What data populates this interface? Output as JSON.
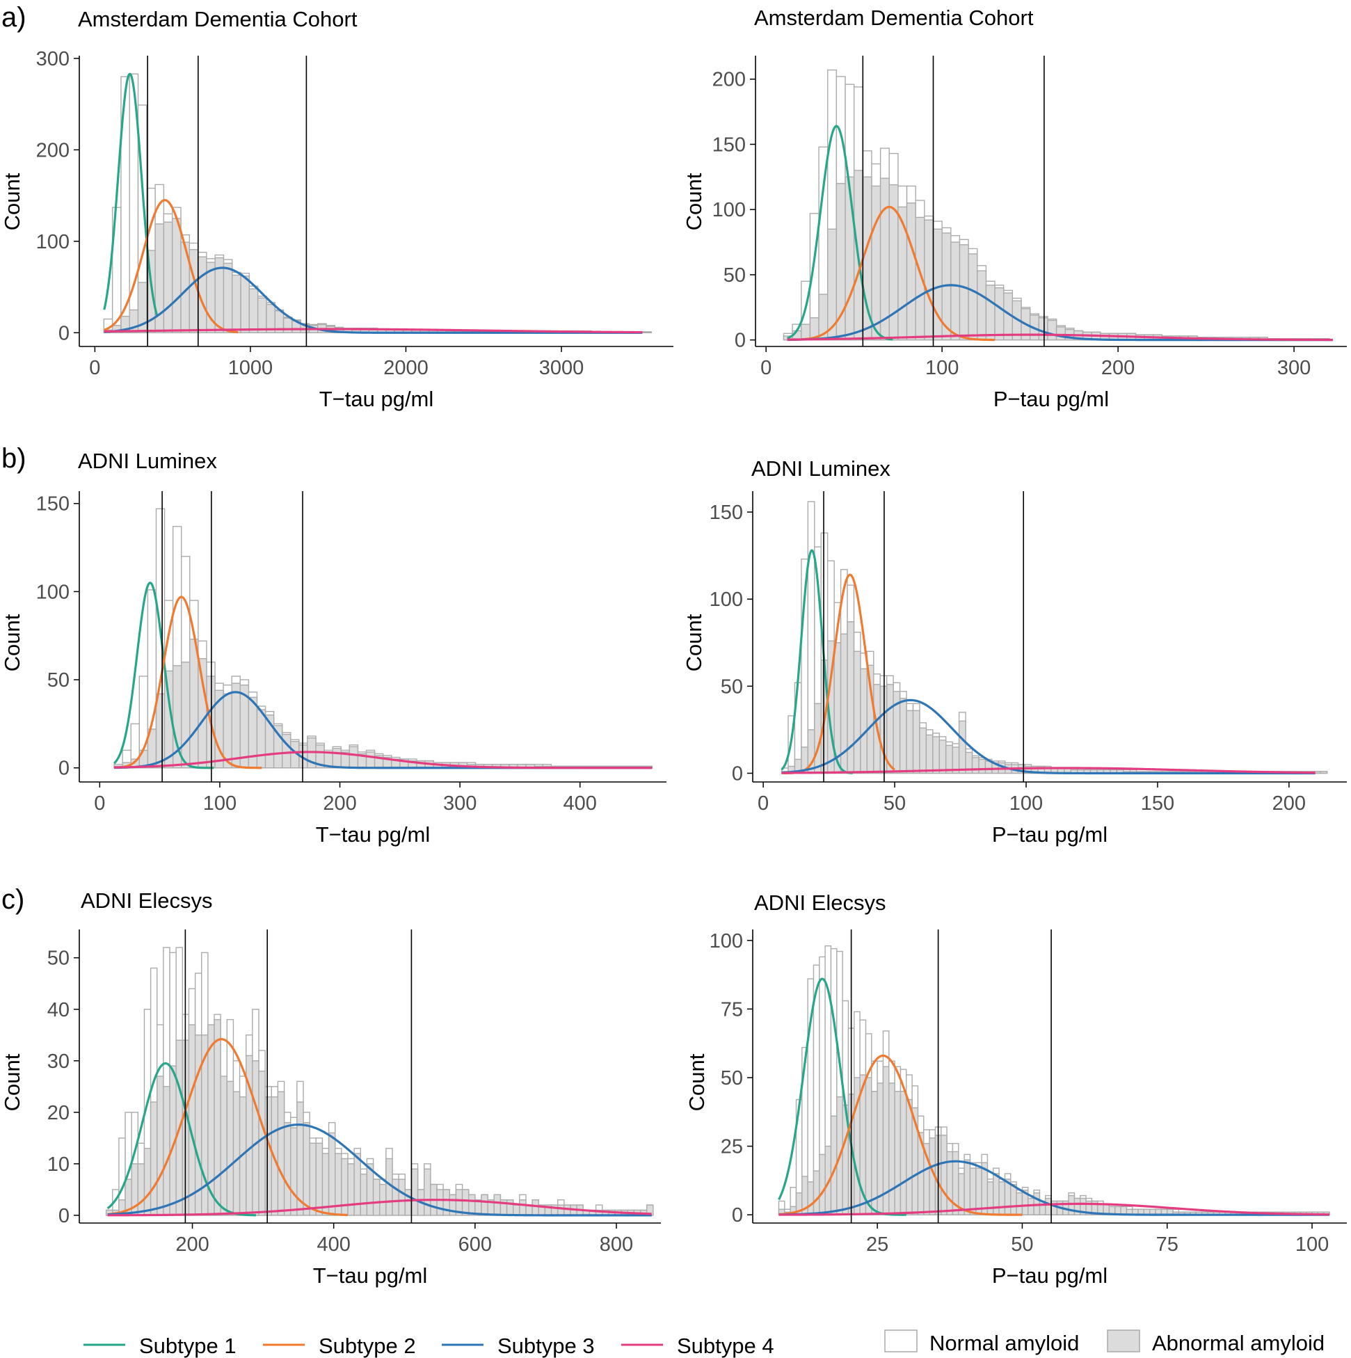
{
  "panel_letters": [
    "a)",
    "b)",
    "c)"
  ],
  "legend": {
    "subtypes": [
      {
        "label": "Subtype 1",
        "color": "#26a68a"
      },
      {
        "label": "Subtype 2",
        "color": "#f07b30"
      },
      {
        "label": "Subtype 3",
        "color": "#2e75b6"
      },
      {
        "label": "Subtype 4",
        "color": "#e43c80"
      }
    ],
    "fills": [
      {
        "label": "Normal amyloid",
        "fill": "#ffffff"
      },
      {
        "label": "Abnormal amyloid",
        "fill": "#dcdcdc"
      }
    ]
  },
  "chart_data": [
    {
      "type": "bar",
      "title": "Amsterdam Dementia Cohort",
      "xlabel": "T−tau pg/ml",
      "ylabel": "Count",
      "xlim": [
        -100,
        3720
      ],
      "ylim": [
        -15,
        303
      ],
      "xticks": [
        0,
        1000,
        2000,
        3000
      ],
      "yticks": [
        0,
        100,
        200,
        300
      ],
      "thresholds": [
        339,
        664,
        1360
      ],
      "bin_start": 58,
      "bin_width": 55,
      "total": [
        15,
        137,
        280,
        283,
        249,
        158,
        162,
        130,
        137,
        107,
        98,
        88,
        81,
        85,
        80,
        66,
        65,
        51,
        40,
        33,
        25,
        17,
        14,
        10,
        9,
        10,
        8,
        6,
        5,
        5,
        5,
        5,
        4,
        4,
        4,
        3,
        3,
        3,
        3,
        3,
        3,
        2,
        2,
        2,
        2,
        2,
        2,
        2,
        2,
        2,
        2,
        2,
        2,
        2,
        2,
        2,
        2,
        1,
        1,
        1,
        1,
        1,
        1,
        1
      ],
      "abnormal": [
        3,
        8,
        18,
        25,
        55,
        90,
        119,
        121,
        125,
        99,
        91,
        83,
        77,
        82,
        76,
        63,
        62,
        48,
        38,
        31,
        24,
        16,
        13,
        9,
        8,
        9,
        7,
        5,
        5,
        5,
        5,
        4,
        4,
        4,
        3,
        3,
        3,
        3,
        3,
        3,
        2,
        2,
        2,
        2,
        2,
        2,
        2,
        2,
        2,
        2,
        2,
        2,
        2,
        2,
        2,
        2,
        1,
        1,
        1,
        1,
        1,
        1,
        1,
        1
      ],
      "series": [
        {
          "name": "Subtype 1",
          "mu": 225,
          "sigma": 75,
          "peak": 283,
          "from": 60,
          "to": 400
        },
        {
          "name": "Subtype 2",
          "mu": 450,
          "sigma": 140,
          "peak": 145,
          "from": 60,
          "to": 920
        },
        {
          "name": "Subtype 3",
          "mu": 820,
          "sigma": 255,
          "peak": 71,
          "from": 60,
          "to": 3520
        },
        {
          "name": "Subtype 4",
          "mu": 1500,
          "sigma": 1000,
          "peak": 4,
          "from": 60,
          "to": 3520
        }
      ]
    },
    {
      "type": "bar",
      "title": "Amsterdam Dementia Cohort",
      "xlabel": "P−tau pg/ml",
      "ylabel": "Count",
      "xlim": [
        -6,
        330
      ],
      "ylim": [
        -5,
        218
      ],
      "xticks": [
        0,
        100,
        200,
        300
      ],
      "yticks": [
        0,
        50,
        100,
        150,
        200
      ],
      "thresholds": [
        55,
        95,
        158
      ],
      "bin_start": 10,
      "bin_width": 5,
      "total": [
        5,
        12,
        45,
        97,
        148,
        207,
        202,
        196,
        194,
        145,
        135,
        147,
        143,
        118,
        118,
        107,
        95,
        91,
        86,
        80,
        77,
        70,
        57,
        45,
        42,
        38,
        32,
        25,
        20,
        18,
        16,
        11,
        9,
        7,
        6,
        6,
        5,
        5,
        5,
        5,
        4,
        4,
        4,
        3,
        3,
        3,
        3,
        2,
        2,
        2,
        2,
        2,
        2,
        2,
        2,
        1,
        1,
        1,
        1,
        1,
        1,
        1
      ],
      "abnormal": [
        3,
        7,
        12,
        17,
        35,
        85,
        120,
        125,
        130,
        125,
        118,
        124,
        119,
        102,
        105,
        94,
        92,
        85,
        82,
        75,
        73,
        66,
        53,
        42,
        40,
        36,
        30,
        24,
        19,
        17,
        15,
        10,
        8,
        7,
        6,
        6,
        5,
        5,
        5,
        5,
        4,
        4,
        4,
        3,
        3,
        3,
        3,
        2,
        2,
        2,
        2,
        2,
        2,
        2,
        2,
        1,
        1,
        1,
        1,
        1,
        1,
        1
      ],
      "series": [
        {
          "name": "Subtype 1",
          "mu": 40,
          "sigma": 9,
          "peak": 164,
          "from": 12,
          "to": 72
        },
        {
          "name": "Subtype 2",
          "mu": 70,
          "sigma": 15,
          "peak": 102,
          "from": 12,
          "to": 130
        },
        {
          "name": "Subtype 3",
          "mu": 105,
          "sigma": 27,
          "peak": 42,
          "from": 12,
          "to": 322
        },
        {
          "name": "Subtype 4",
          "mu": 150,
          "sigma": 60,
          "peak": 4,
          "from": 12,
          "to": 322
        }
      ]
    },
    {
      "type": "bar",
      "title": "ADNI Luminex",
      "xlabel": "T−tau pg/ml",
      "ylabel": "Count",
      "xlim": [
        -17,
        472
      ],
      "ylim": [
        -8,
        157
      ],
      "xticks": [
        0,
        100,
        200,
        300,
        400
      ],
      "yticks": [
        0,
        50,
        100,
        150
      ],
      "thresholds": [
        52,
        93,
        169
      ],
      "bin_start": 12,
      "bin_width": 7,
      "total": [
        2,
        10,
        25,
        52,
        101,
        147,
        95,
        137,
        120,
        95,
        72,
        60,
        48,
        47,
        52,
        50,
        43,
        35,
        32,
        25,
        20,
        16,
        14,
        18,
        14,
        10,
        12,
        10,
        13,
        9,
        10,
        8,
        7,
        6,
        5,
        5,
        4,
        4,
        3,
        3,
        3,
        3,
        3,
        2,
        2,
        2,
        2,
        2,
        2,
        2,
        2,
        2,
        1,
        1,
        1,
        1,
        1,
        1,
        1,
        1,
        1,
        1,
        1,
        1
      ],
      "abnormal": [
        1,
        3,
        5,
        10,
        22,
        42,
        55,
        58,
        60,
        73,
        62,
        52,
        44,
        42,
        48,
        47,
        40,
        33,
        30,
        24,
        19,
        15,
        13,
        17,
        13,
        9,
        11,
        9,
        12,
        8,
        9,
        7,
        6,
        5,
        5,
        4,
        4,
        4,
        3,
        3,
        3,
        3,
        2,
        2,
        2,
        2,
        2,
        2,
        2,
        2,
        1,
        1,
        1,
        1,
        1,
        1,
        1,
        1,
        1,
        1,
        1,
        1,
        1,
        1
      ],
      "series": [
        {
          "name": "Subtype 1",
          "mu": 42,
          "sigma": 11,
          "peak": 105,
          "from": 12,
          "to": 95
        },
        {
          "name": "Subtype 2",
          "mu": 68,
          "sigma": 15,
          "peak": 97,
          "from": 12,
          "to": 135
        },
        {
          "name": "Subtype 3",
          "mu": 113,
          "sigma": 28,
          "peak": 43,
          "from": 12,
          "to": 460
        },
        {
          "name": "Subtype 4",
          "mu": 175,
          "sigma": 60,
          "peak": 9,
          "from": 12,
          "to": 460
        }
      ]
    },
    {
      "type": "bar",
      "title": "ADNI Luminex",
      "xlabel": "P−tau pg/ml",
      "ylabel": "Count",
      "xlim": [
        -4,
        222
      ],
      "ylim": [
        -5,
        162
      ],
      "xticks": [
        0,
        50,
        100,
        150,
        200
      ],
      "yticks": [
        0,
        50,
        100,
        150
      ],
      "thresholds": [
        23,
        46,
        99
      ],
      "bin_start": 7,
      "bin_width": 2.5,
      "total": [
        3,
        33,
        52,
        123,
        156,
        130,
        138,
        122,
        98,
        117,
        108,
        81,
        69,
        70,
        57,
        56,
        56,
        52,
        47,
        40,
        40,
        29,
        25,
        23,
        21,
        18,
        17,
        35,
        14,
        10,
        9,
        8,
        7,
        7,
        6,
        6,
        5,
        5,
        4,
        4,
        4,
        3,
        3,
        3,
        3,
        3,
        2,
        2,
        2,
        2,
        2,
        2,
        2,
        2,
        1,
        1,
        1,
        1,
        1,
        1,
        1,
        1,
        1,
        1,
        1,
        1,
        1,
        1,
        1,
        1,
        1,
        1,
        1,
        1,
        1,
        1,
        1,
        1,
        1,
        1,
        1,
        1,
        1
      ],
      "abnormal": [
        1,
        4,
        8,
        15,
        25,
        40,
        65,
        76,
        75,
        80,
        87,
        70,
        60,
        62,
        51,
        50,
        51,
        47,
        43,
        36,
        36,
        26,
        22,
        21,
        19,
        16,
        15,
        30,
        12,
        9,
        8,
        7,
        6,
        6,
        5,
        5,
        5,
        4,
        4,
        4,
        3,
        3,
        3,
        3,
        2,
        2,
        2,
        2,
        2,
        2,
        2,
        2,
        1,
        1,
        1,
        1,
        1,
        1,
        1,
        1,
        1,
        1,
        1,
        1,
        1,
        1,
        1,
        1,
        1,
        1,
        1,
        1,
        1,
        1,
        1,
        1,
        1,
        1,
        1,
        1,
        1,
        1,
        1
      ],
      "series": [
        {
          "name": "Subtype 1",
          "mu": 18.5,
          "sigma": 4,
          "peak": 128,
          "from": 7,
          "to": 34
        },
        {
          "name": "Subtype 2",
          "mu": 33,
          "sigma": 6,
          "peak": 114,
          "from": 7,
          "to": 50
        },
        {
          "name": "Subtype 3",
          "mu": 56,
          "sigma": 16,
          "peak": 42,
          "from": 7,
          "to": 210
        },
        {
          "name": "Subtype 4",
          "mu": 115,
          "sigma": 45,
          "peak": 3,
          "from": 7,
          "to": 210
        }
      ]
    },
    {
      "type": "bar",
      "title": "ADNI Elecsys",
      "xlabel": "T−tau pg/ml",
      "ylabel": "Count",
      "xlim": [
        40,
        863
      ],
      "ylim": [
        -1.5,
        55.5
      ],
      "xticks": [
        200,
        400,
        600,
        800
      ],
      "yticks": [
        0,
        10,
        20,
        30,
        40,
        50
      ],
      "thresholds": [
        190,
        306,
        510
      ],
      "bin_start": 78,
      "bin_width": 9,
      "total": [
        1,
        5,
        15,
        20,
        20,
        14,
        40,
        48,
        37,
        52,
        51,
        52,
        39,
        44,
        47,
        51,
        36,
        39,
        26,
        38,
        30,
        27,
        35,
        40,
        32,
        25,
        25,
        26,
        20,
        19,
        26,
        20,
        15,
        15,
        13,
        18,
        13,
        12,
        11,
        13,
        9,
        11,
        7,
        7,
        13,
        8,
        8,
        5,
        10,
        5,
        10,
        6,
        6,
        5,
        4,
        6,
        5,
        4,
        3,
        4,
        3,
        4,
        3,
        3,
        2,
        4,
        2,
        3,
        2,
        2,
        2,
        3,
        2,
        2,
        2,
        1,
        1,
        2,
        1,
        1,
        1,
        1,
        1,
        1,
        1,
        2
      ],
      "abnormal": [
        1,
        1,
        3,
        7,
        10,
        10,
        13,
        22,
        27,
        25,
        29,
        34,
        34,
        37,
        35,
        35,
        37,
        38,
        27,
        26,
        24,
        23,
        31,
        30,
        28,
        23,
        23,
        24,
        18,
        17,
        22,
        18,
        14,
        14,
        12,
        16,
        12,
        11,
        10,
        12,
        8,
        10,
        7,
        6,
        11,
        7,
        7,
        5,
        9,
        5,
        9,
        6,
        5,
        5,
        4,
        5,
        5,
        4,
        3,
        4,
        3,
        4,
        3,
        3,
        2,
        3,
        2,
        3,
        2,
        2,
        2,
        2,
        2,
        2,
        2,
        1,
        1,
        1,
        1,
        1,
        1,
        1,
        1,
        1,
        1,
        2
      ],
      "series": [
        {
          "name": "Subtype 1",
          "mu": 162,
          "sigma": 33,
          "peak": 29.5,
          "from": 80,
          "to": 290
        },
        {
          "name": "Subtype 2",
          "mu": 241,
          "sigma": 50,
          "peak": 34.2,
          "from": 80,
          "to": 420
        },
        {
          "name": "Subtype 3",
          "mu": 350,
          "sigma": 88,
          "peak": 17.6,
          "from": 80,
          "to": 850
        },
        {
          "name": "Subtype 4",
          "mu": 545,
          "sigma": 140,
          "peak": 3,
          "from": 80,
          "to": 850
        }
      ]
    },
    {
      "type": "bar",
      "title": "ADNI Elecsys",
      "xlabel": "P−tau pg/ml",
      "ylabel": "Count",
      "xlim": [
        3.5,
        106
      ],
      "ylim": [
        -3,
        104
      ],
      "xticks": [
        25,
        50,
        75,
        100
      ],
      "yticks": [
        0,
        25,
        50,
        75,
        100
      ],
      "thresholds": [
        20.5,
        35.5,
        55
      ],
      "bin_start": 8,
      "bin_width": 1,
      "total": [
        5,
        2,
        10,
        42,
        61,
        86,
        91,
        94,
        98,
        97,
        96,
        78,
        68,
        74,
        71,
        66,
        56,
        56,
        67,
        56,
        54,
        53,
        51,
        47,
        36,
        31,
        31,
        32,
        32,
        26,
        26,
        17,
        22,
        19,
        19,
        22,
        13,
        17,
        13,
        15,
        12,
        9,
        10,
        7,
        9,
        5,
        7,
        5,
        5,
        5,
        8,
        6,
        7,
        6,
        5,
        5,
        4,
        3,
        3,
        3,
        3,
        2,
        2,
        2,
        2,
        2,
        2,
        2,
        2,
        1,
        1,
        1,
        1,
        1,
        1,
        1,
        1,
        1,
        1,
        1,
        1,
        1,
        1,
        1,
        1,
        1,
        1,
        1,
        1,
        1,
        1,
        1,
        1,
        1,
        1
      ],
      "abnormal": [
        2,
        1,
        3,
        8,
        14,
        12,
        16,
        22,
        25,
        36,
        43,
        40,
        44,
        50,
        51,
        50,
        45,
        48,
        54,
        48,
        45,
        45,
        42,
        39,
        30,
        26,
        28,
        29,
        29,
        23,
        23,
        15,
        20,
        17,
        17,
        19,
        12,
        15,
        12,
        13,
        11,
        8,
        9,
        6,
        8,
        5,
        6,
        5,
        5,
        5,
        7,
        6,
        6,
        5,
        5,
        4,
        4,
        3,
        3,
        3,
        2,
        2,
        2,
        2,
        2,
        2,
        2,
        2,
        1,
        1,
        1,
        1,
        1,
        1,
        1,
        1,
        1,
        1,
        1,
        1,
        1,
        1,
        1,
        1,
        1,
        1,
        1,
        1,
        1,
        1,
        1,
        1,
        1,
        1,
        1
      ],
      "series": [
        {
          "name": "Subtype 1",
          "mu": 15.5,
          "sigma": 3.2,
          "peak": 86,
          "from": 8,
          "to": 30
        },
        {
          "name": "Subtype 2",
          "mu": 26,
          "sigma": 5.3,
          "peak": 58,
          "from": 8,
          "to": 50
        },
        {
          "name": "Subtype 3",
          "mu": 38.5,
          "sigma": 9,
          "peak": 19.5,
          "from": 8,
          "to": 103
        },
        {
          "name": "Subtype 4",
          "mu": 60,
          "sigma": 16,
          "peak": 4,
          "from": 8,
          "to": 103
        }
      ]
    }
  ]
}
